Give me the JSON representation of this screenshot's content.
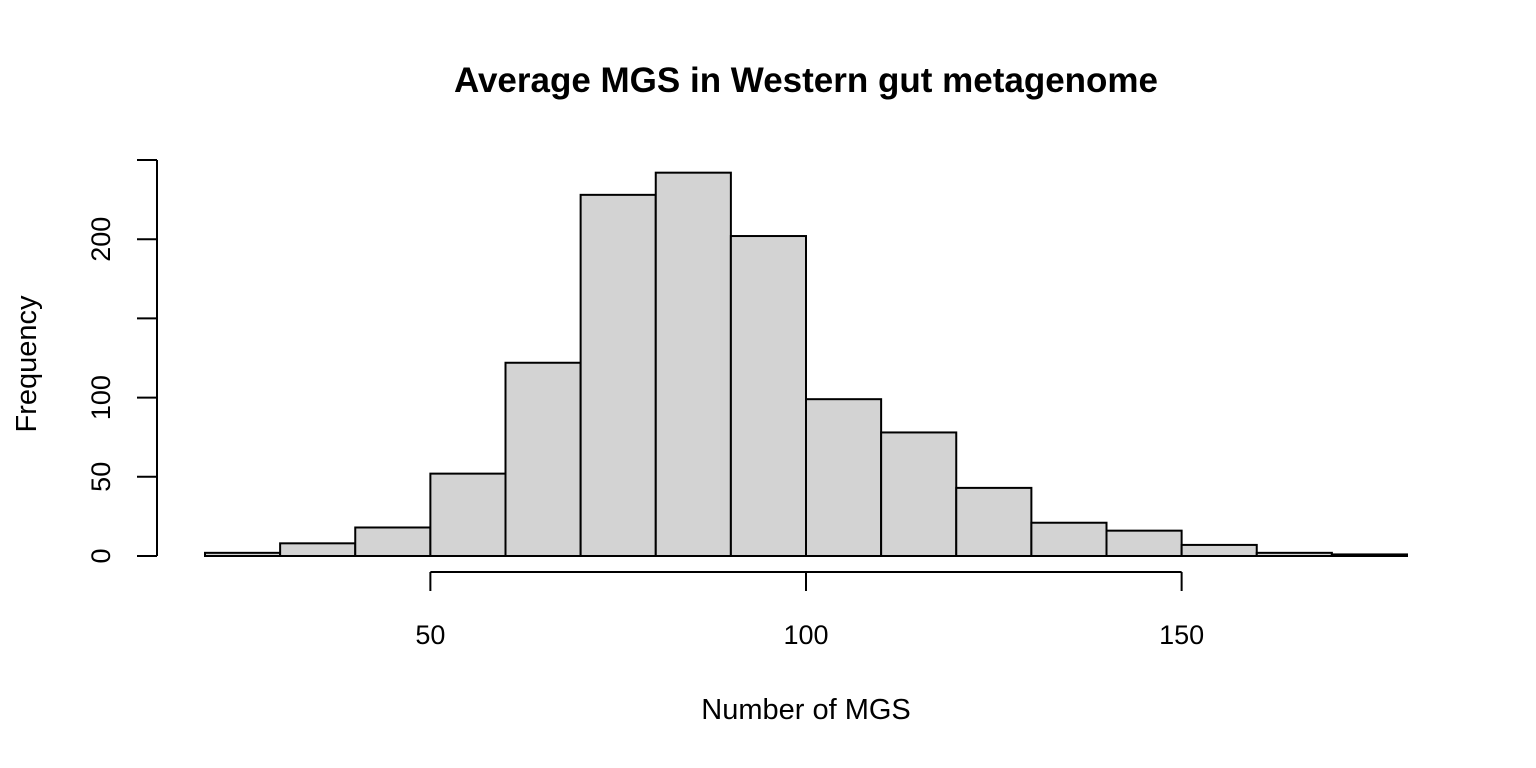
{
  "chart_data": {
    "type": "bar",
    "title": "Average MGS in Western gut metagenome",
    "xlabel": "Number of MGS",
    "ylabel": "Frequency",
    "bins": [
      {
        "start": 20,
        "end": 30,
        "count": 2
      },
      {
        "start": 30,
        "end": 40,
        "count": 8
      },
      {
        "start": 40,
        "end": 50,
        "count": 18
      },
      {
        "start": 50,
        "end": 60,
        "count": 52
      },
      {
        "start": 60,
        "end": 70,
        "count": 122
      },
      {
        "start": 70,
        "end": 80,
        "count": 228
      },
      {
        "start": 80,
        "end": 90,
        "count": 242
      },
      {
        "start": 90,
        "end": 100,
        "count": 202
      },
      {
        "start": 100,
        "end": 110,
        "count": 99
      },
      {
        "start": 110,
        "end": 120,
        "count": 78
      },
      {
        "start": 120,
        "end": 130,
        "count": 43
      },
      {
        "start": 130,
        "end": 140,
        "count": 21
      },
      {
        "start": 140,
        "end": 150,
        "count": 16
      },
      {
        "start": 150,
        "end": 160,
        "count": 7
      },
      {
        "start": 160,
        "end": 170,
        "count": 2
      },
      {
        "start": 170,
        "end": 180,
        "count": 1
      }
    ],
    "x_ticks": [
      50,
      100,
      150
    ],
    "x_tick_labels": [
      "50",
      "100",
      "150"
    ],
    "y_ticks": [
      0,
      50,
      100,
      150,
      200,
      250
    ],
    "y_tick_labels": [
      "0",
      "50",
      "100",
      "",
      "200",
      ""
    ],
    "xlim": [
      20,
      180
    ],
    "ylim": [
      0,
      250
    ],
    "grid": false,
    "colors": {
      "bar_fill": "#d3d3d3",
      "bar_stroke": "#000000"
    }
  }
}
